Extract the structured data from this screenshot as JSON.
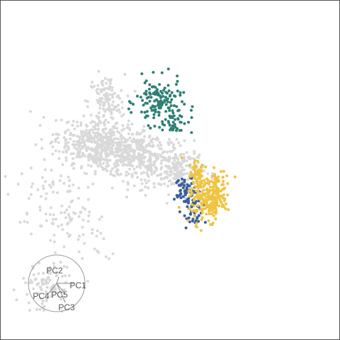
{
  "chart_data": {
    "type": "scatter",
    "description_labels": [],
    "background": "#ffffff",
    "border_color": "#555555",
    "grid": false,
    "legend": "none",
    "series": [
      {
        "color": "#d9d9d9",
        "clusters": [
          {
            "cx": -0.3,
            "cy": 0.1,
            "sx": 0.1,
            "sy": 0.05,
            "n": 520,
            "rot": -0.3
          },
          {
            "cx": -0.28,
            "cy": 0.3,
            "sx": 0.04,
            "sy": 0.06,
            "n": 120,
            "rot": 0.0
          },
          {
            "cx": -0.55,
            "cy": -0.5,
            "sx": 0.05,
            "sy": 0.05,
            "n": 90,
            "rot": 0.6
          },
          {
            "cx": -0.48,
            "cy": -0.2,
            "sx": 0.08,
            "sy": 0.14,
            "n": 130,
            "rot": 0.5
          },
          {
            "cx": -0.1,
            "cy": 0.05,
            "sx": 0.08,
            "sy": 0.06,
            "n": 260,
            "rot": -0.3
          },
          {
            "cx": 0.05,
            "cy": 0.0,
            "sx": 0.05,
            "sy": 0.05,
            "n": 150,
            "rot": 0.0
          }
        ]
      },
      {
        "color": "#2e8075",
        "clusters": [
          {
            "cx": -0.05,
            "cy": 0.3,
            "sx": 0.05,
            "sy": 0.05,
            "n": 130,
            "rot": 0.0
          },
          {
            "cx": 0.02,
            "cy": 0.22,
            "sx": 0.04,
            "sy": 0.03,
            "n": 40,
            "rot": 0.0
          }
        ]
      },
      {
        "color": "#3a5f9a",
        "clusters": [
          {
            "cx": 0.07,
            "cy": -0.1,
            "sx": 0.025,
            "sy": 0.04,
            "n": 70,
            "rot": 0.5
          },
          {
            "cx": 0.1,
            "cy": -0.2,
            "sx": 0.02,
            "sy": 0.03,
            "n": 30,
            "rot": 0.0
          }
        ]
      },
      {
        "color": "#eec443",
        "clusters": [
          {
            "cx": 0.18,
            "cy": -0.12,
            "sx": 0.035,
            "sy": 0.06,
            "n": 230,
            "rot": -0.35
          },
          {
            "cx": 0.12,
            "cy": -0.03,
            "sx": 0.02,
            "sy": 0.04,
            "n": 60,
            "rot": 0.0
          }
        ]
      }
    ],
    "loadings": [
      {
        "name": "PC1",
        "dx": 0.08,
        "dy": 0.0
      },
      {
        "name": "PC2",
        "dx": 0.01,
        "dy": 0.03
      },
      {
        "name": "PC3",
        "dx": 0.04,
        "dy": -0.09
      },
      {
        "name": "PC4",
        "dx": -0.04,
        "dy": -0.05
      },
      {
        "name": "PC5",
        "dx": 0.04,
        "dy": -0.05
      }
    ],
    "loading_circle_radius": 0.12,
    "xlim": [
      -0.75,
      0.75
    ],
    "ylim": [
      -0.75,
      0.75
    ]
  }
}
